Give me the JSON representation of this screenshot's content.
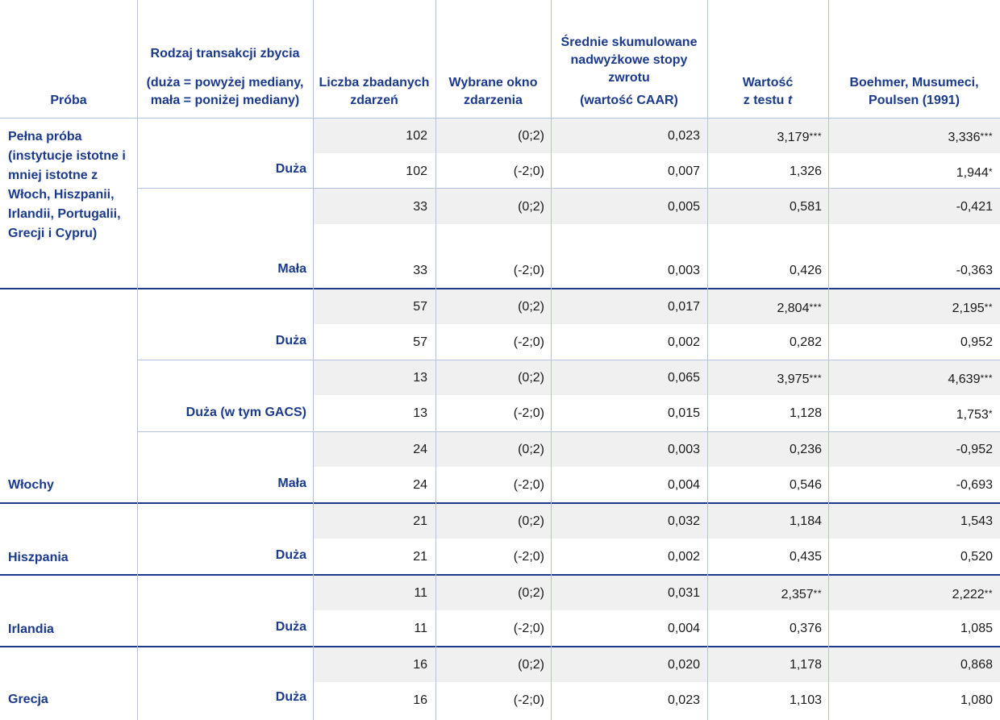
{
  "headers": {
    "sample": "Próba",
    "tx_type_line1": "Rodzaj transakcji zbycia",
    "tx_type_line2": "(duża = powyżej mediany, mała = poniżej mediany)",
    "count": "Liczba zbadanych zdarzeń",
    "window": "Wybrane okno zdarzenia",
    "caar_line1": "Średnie skumulowane nadwyżkowe stopy zwrotu",
    "caar_line2": "(wartość CAAR)",
    "ttest_prefix": "Wartość",
    "ttest_line2": "z testu",
    "ttest_var": "t",
    "bmp": "Boehmer, Musumeci, Poulsen (1991)"
  },
  "groups": [
    {
      "sample": "Pełna próba (instytucje istotne i mniej istotne z Włoch, Hiszpanii, Irlandii, Portugalii, Grecji i Cypru)"
    },
    {
      "sample": "Włochy"
    },
    {
      "sample": "Hiszpania"
    },
    {
      "sample": "Irlandia"
    },
    {
      "sample": "Grecja"
    }
  ],
  "sizes": [
    "Duża",
    "Mała",
    "Duża",
    "Duża (w tym GACS)",
    "Mała",
    "Duża",
    "Duża",
    "Duża"
  ],
  "rows": [
    {
      "n": "102",
      "w": "(0;2)",
      "caar": "0,023",
      "t": "3,179",
      "ts": "***",
      "b": "3,336",
      "bs": "***"
    },
    {
      "n": "102",
      "w": "(-2;0)",
      "caar": "0,007",
      "t": "1,326",
      "ts": "",
      "b": "1,944",
      "bs": "*"
    },
    {
      "n": "33",
      "w": "(0;2)",
      "caar": "0,005",
      "t": "0,581",
      "ts": "",
      "b": "-0,421",
      "bs": ""
    },
    {
      "n": "33",
      "w": "(-2;0)",
      "caar": "0,003",
      "t": "0,426",
      "ts": "",
      "b": "-0,363",
      "bs": ""
    },
    {
      "n": "57",
      "w": "(0;2)",
      "caar": "0,017",
      "t": "2,804",
      "ts": "***",
      "b": "2,195",
      "bs": "**"
    },
    {
      "n": "57",
      "w": "(-2;0)",
      "caar": "0,002",
      "t": "0,282",
      "ts": "",
      "b": "0,952",
      "bs": ""
    },
    {
      "n": "13",
      "w": "(0;2)",
      "caar": "0,065",
      "t": "3,975",
      "ts": "***",
      "b": "4,639",
      "bs": "***"
    },
    {
      "n": "13",
      "w": "(-2;0)",
      "caar": "0,015",
      "t": "1,128",
      "ts": "",
      "b": "1,753",
      "bs": "*"
    },
    {
      "n": "24",
      "w": "(0;2)",
      "caar": "0,003",
      "t": "0,236",
      "ts": "",
      "b": "-0,952",
      "bs": ""
    },
    {
      "n": "24",
      "w": "(-2;0)",
      "caar": "0,004",
      "t": "0,546",
      "ts": "",
      "b": "-0,693",
      "bs": ""
    },
    {
      "n": "21",
      "w": "(0;2)",
      "caar": "0,032",
      "t": "1,184",
      "ts": "",
      "b": "1,543",
      "bs": ""
    },
    {
      "n": "21",
      "w": "(-2;0)",
      "caar": "0,002",
      "t": "0,435",
      "ts": "",
      "b": "0,520",
      "bs": ""
    },
    {
      "n": "11",
      "w": "(0;2)",
      "caar": "0,031",
      "t": "2,357",
      "ts": "**",
      "b": "2,222",
      "bs": "**"
    },
    {
      "n": "11",
      "w": "(-2;0)",
      "caar": "0,004",
      "t": "0,376",
      "ts": "",
      "b": "1,085",
      "bs": ""
    },
    {
      "n": "16",
      "w": "(0;2)",
      "caar": "0,020",
      "t": "1,178",
      "ts": "",
      "b": "0,868",
      "bs": ""
    },
    {
      "n": "16",
      "w": "(-2;0)",
      "caar": "0,023",
      "t": "1,103",
      "ts": "",
      "b": "1,080",
      "bs": ""
    }
  ]
}
